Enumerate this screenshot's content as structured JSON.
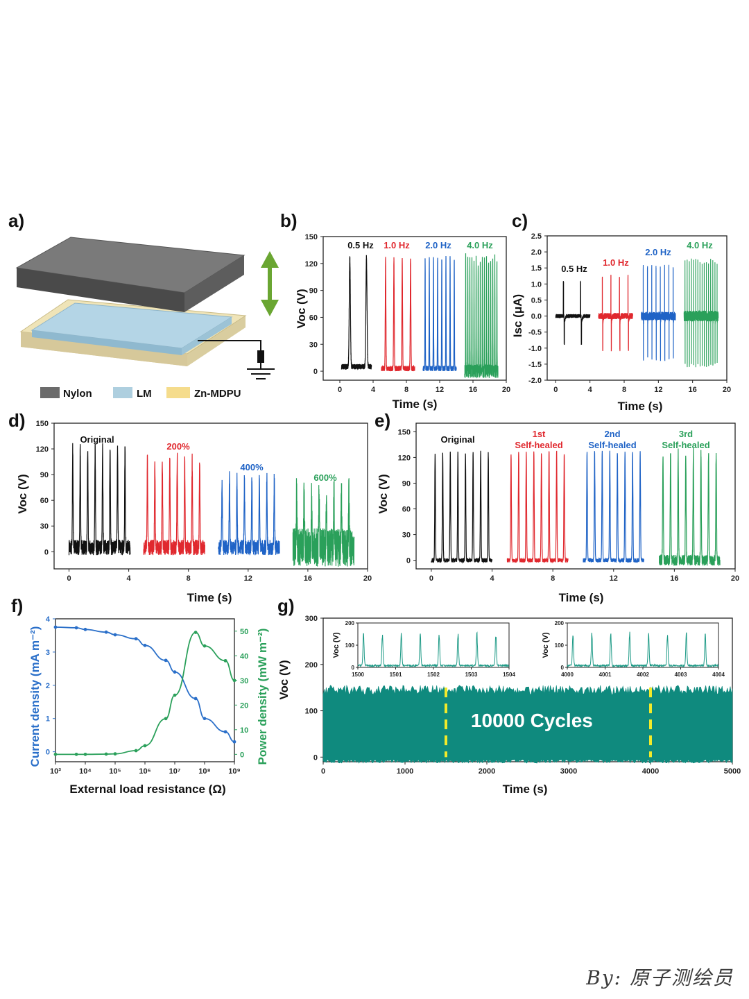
{
  "panels": {
    "a": "a)",
    "b": "b)",
    "c": "c)",
    "d": "d)",
    "e": "e)",
    "f": "f)",
    "g": "g)"
  },
  "schematic": {
    "legend": [
      {
        "label": "Nylon",
        "color": "#6b6b6b"
      },
      {
        "label": "LM",
        "color": "#aecfdf"
      },
      {
        "label": "Zn-MDPU",
        "color": "#f5dc8c"
      }
    ]
  },
  "colors": {
    "black": "#111111",
    "red": "#e0282e",
    "blue": "#1f63c6",
    "green": "#2aa05a",
    "teal": "#0f8a7e",
    "yellow": "#f2ea2a",
    "fblue": "#2a6fc9",
    "fgreen": "#2aa05a"
  },
  "chart_data": [
    {
      "id": "b",
      "type": "line",
      "title": "",
      "xlabel": "Time (s)",
      "ylabel": "Voc (V)",
      "xlim": [
        -2,
        20
      ],
      "ylim": [
        -10,
        150
      ],
      "xticks": [
        "0",
        "4",
        "8",
        "12",
        "16",
        "20"
      ],
      "yticks": [
        "0",
        "30",
        "60",
        "90",
        "120",
        "150"
      ],
      "series": [
        {
          "name": "0.5 Hz",
          "start": 0.2,
          "end": 3.8,
          "freq": 0.5,
          "peak": 127,
          "base": 5
        },
        {
          "name": "1.0 Hz",
          "start": 5.0,
          "end": 9.0,
          "freq": 1.0,
          "peak": 126,
          "base": 3
        },
        {
          "name": "2.0 Hz",
          "start": 10.0,
          "end": 14.0,
          "freq": 2.0,
          "peak": 126,
          "base": 3
        },
        {
          "name": "4.0 Hz",
          "start": 15.0,
          "end": 19.0,
          "freq": 4.0,
          "peak": 124,
          "base": 0
        }
      ]
    },
    {
      "id": "c",
      "type": "line",
      "title": "",
      "xlabel": "Time (s)",
      "ylabel": "Isc (μA)",
      "xlim": [
        -1,
        20
      ],
      "ylim": [
        -2.0,
        2.5
      ],
      "xticks": [
        "0",
        "4",
        "8",
        "12",
        "16",
        "20"
      ],
      "yticks": [
        "-2.0",
        "-1.5",
        "-1.0",
        "-0.5",
        "0.0",
        "0.5",
        "1.0",
        "1.5",
        "2.0",
        "2.5"
      ],
      "series": [
        {
          "name": "0.5 Hz",
          "start": 0.0,
          "end": 4.0,
          "freq": 0.5,
          "pos": 1.1,
          "neg": -0.9
        },
        {
          "name": "1.0 Hz",
          "start": 5.0,
          "end": 9.0,
          "freq": 1.0,
          "pos": 1.3,
          "neg": -1.1
        },
        {
          "name": "2.0 Hz",
          "start": 10.0,
          "end": 14.0,
          "freq": 2.0,
          "pos": 1.6,
          "neg": -1.4
        },
        {
          "name": "4.0 Hz",
          "start": 15.0,
          "end": 19.0,
          "freq": 4.0,
          "pos": 1.8,
          "neg": -1.6
        }
      ]
    },
    {
      "id": "d",
      "type": "line",
      "title": "",
      "xlabel": "Time (s)",
      "ylabel": "Voc (V)",
      "xlim": [
        -1,
        20
      ],
      "ylim": [
        -20,
        150
      ],
      "xticks": [
        "0",
        "4",
        "8",
        "12",
        "16",
        "20"
      ],
      "yticks": [
        "0",
        "30",
        "60",
        "90",
        "120",
        "150"
      ],
      "series": [
        {
          "name": "Original",
          "start": 0.0,
          "end": 4.1,
          "freq": 2.0,
          "peak": 120,
          "base": 5
        },
        {
          "name": "200%",
          "start": 5.0,
          "end": 9.1,
          "freq": 2.0,
          "peak": 108,
          "base": 5
        },
        {
          "name": "400%",
          "start": 10.0,
          "end": 14.1,
          "freq": 2.0,
          "peak": 86,
          "base": 5
        },
        {
          "name": "600%",
          "start": 15.0,
          "end": 19.1,
          "freq": 2.0,
          "peak": 70,
          "base": 5
        }
      ]
    },
    {
      "id": "e",
      "type": "line",
      "title": "",
      "xlabel": "Time (s)",
      "ylabel": "Voc (V)",
      "xlim": [
        -1,
        20
      ],
      "ylim": [
        -10,
        160
      ],
      "xticks": [
        "0",
        "4",
        "8",
        "12",
        "16",
        "20"
      ],
      "yticks": [
        "0",
        "30",
        "60",
        "90",
        "120",
        "150"
      ],
      "series": [
        {
          "name": "Original",
          "start": 0.0,
          "end": 4.0,
          "freq": 2.0,
          "peak": 126,
          "base": 0
        },
        {
          "name": "1st Self-healed",
          "label1": "1st",
          "label2": "Self-healed",
          "start": 5.0,
          "end": 9.0,
          "freq": 2.0,
          "peak": 126,
          "base": 0
        },
        {
          "name": "2nd Self-healed",
          "label1": "2nd",
          "label2": "Self-healed",
          "start": 10.0,
          "end": 14.0,
          "freq": 2.0,
          "peak": 126,
          "base": 0
        },
        {
          "name": "3rd Self-healed",
          "label1": "3rd",
          "label2": "Self-healed",
          "start": 15.0,
          "end": 19.0,
          "freq": 2.0,
          "peak": 126,
          "base": 0
        }
      ]
    },
    {
      "id": "f",
      "type": "line",
      "title": "",
      "xlabel": "External load resistance (Ω)",
      "ylabel": "Current density (mA m⁻²)",
      "ylabel2": "Power density (mW m⁻²)",
      "xlim_log": [
        3,
        9
      ],
      "ylim": [
        -0.3,
        4.0
      ],
      "ylim2": [
        -3,
        55
      ],
      "xticks": [
        "10³",
        "10⁴",
        "10⁵",
        "10⁶",
        "10⁷",
        "10⁸",
        "10⁹"
      ],
      "yticks": [
        "0",
        "1",
        "2",
        "3",
        "4"
      ],
      "yticks2": [
        "0",
        "10",
        "20",
        "30",
        "40",
        "50"
      ],
      "current": {
        "log_r": [
          3,
          3.7,
          4,
          4.7,
          5,
          5.7,
          6,
          6.7,
          7,
          7.7,
          8,
          8.7,
          9
        ],
        "values": [
          3.75,
          3.73,
          3.68,
          3.6,
          3.52,
          3.4,
          3.2,
          2.75,
          2.4,
          1.6,
          1.0,
          0.6,
          0.3
        ]
      },
      "power": {
        "log_r": [
          3,
          3.7,
          4,
          4.7,
          5,
          5.7,
          6,
          6.7,
          7,
          7.7,
          8,
          8.7,
          9
        ],
        "values": [
          0.0,
          0.0,
          0.0,
          0.1,
          0.2,
          1.5,
          3.5,
          14.5,
          24.0,
          49.5,
          44.0,
          38.0,
          30.0
        ]
      }
    },
    {
      "id": "g",
      "type": "area",
      "title": "",
      "xlabel": "Time (s)",
      "ylabel": "Voc (V)",
      "annotation": "10000 Cycles",
      "xlim": [
        0,
        5000
      ],
      "ylim": [
        -10,
        300
      ],
      "xticks": [
        "0",
        "1000",
        "2000",
        "3000",
        "4000",
        "5000"
      ],
      "yticks": [
        "0",
        "100",
        "200",
        "300"
      ],
      "envelope": {
        "low": -5,
        "high": 145
      },
      "markers": [
        1500,
        4000
      ],
      "insets": [
        {
          "xlabel": "",
          "ylabel": "Voc (V)",
          "xticks": [
            "1500",
            "1501",
            "1502",
            "1503",
            "1504"
          ],
          "yticks": [
            "0",
            "100",
            "200"
          ],
          "start": 1500,
          "end": 1504,
          "peak": 150
        },
        {
          "xlabel": "",
          "ylabel": "Voc (V)",
          "xticks": [
            "4000",
            "4001",
            "4002",
            "4003",
            "4004"
          ],
          "yticks": [
            "0",
            "100",
            "200"
          ],
          "start": 4000,
          "end": 4004,
          "peak": 150
        }
      ]
    }
  ],
  "watermark": "By: 原子测绘员"
}
